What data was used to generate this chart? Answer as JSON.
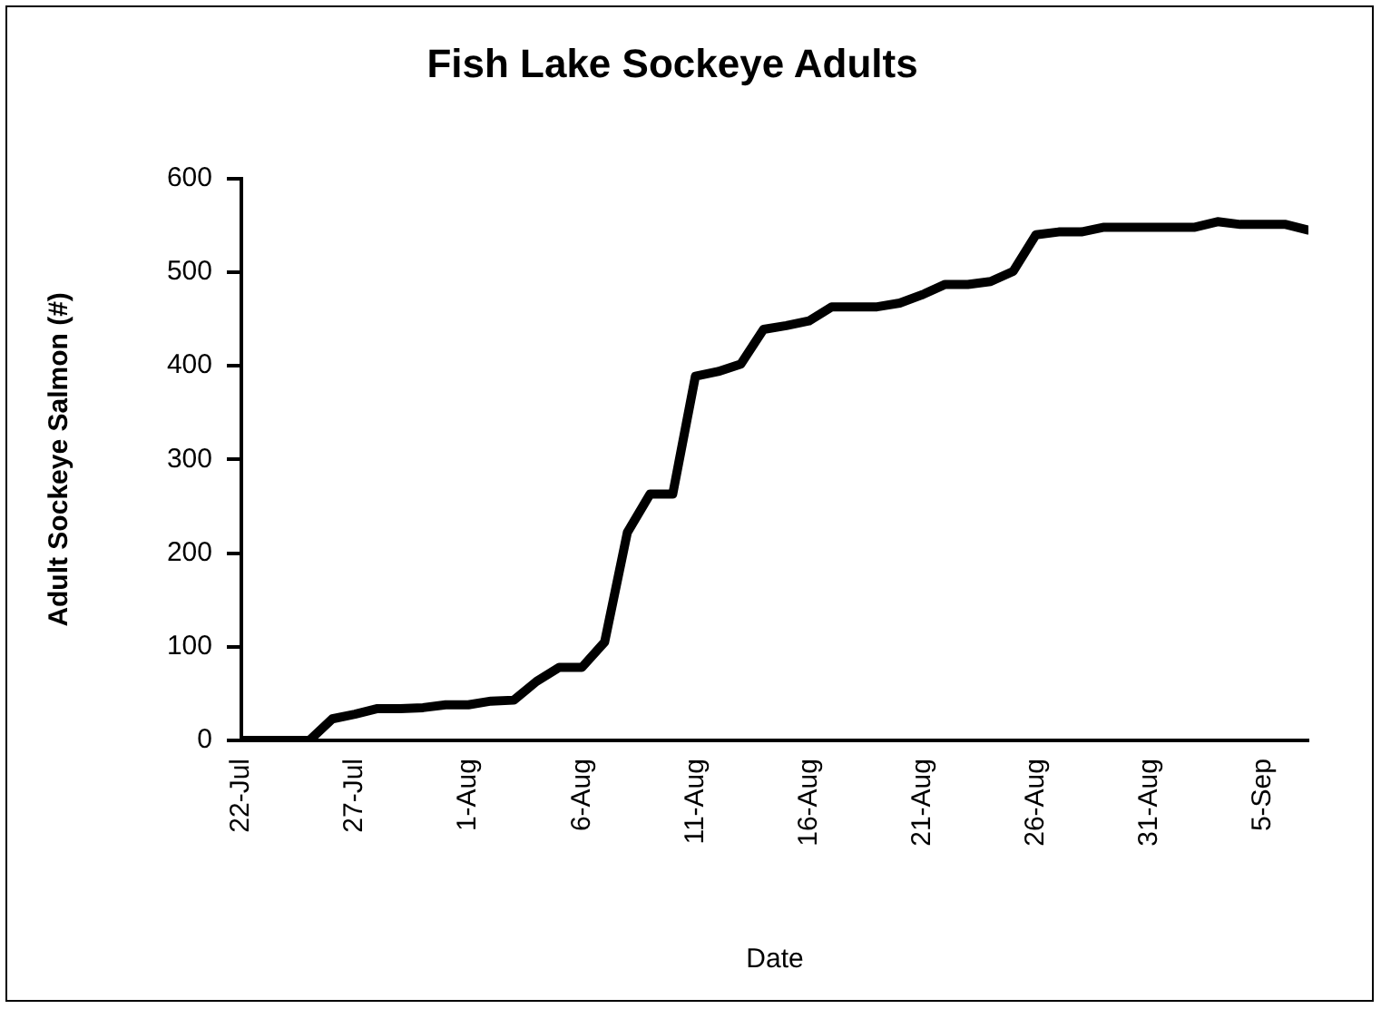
{
  "chart_data": {
    "type": "line",
    "title": "Fish Lake Sockeye Adults",
    "xlabel": "Date",
    "ylabel": "Adult Sockeye Salmon (#)",
    "x": [
      "--07-22",
      "--07-23",
      "--07-24",
      "--07-25",
      "--07-26",
      "--07-27",
      "--07-28",
      "--07-29",
      "--07-30",
      "--07-31",
      "--08-01",
      "--08-02",
      "--08-03",
      "--08-04",
      "--08-05",
      "--08-06",
      "--08-07",
      "--08-08",
      "--08-09",
      "--08-10",
      "--08-11",
      "--08-12",
      "--08-13",
      "--08-14",
      "--08-15",
      "--08-16",
      "--08-17",
      "--08-18",
      "--08-19",
      "--08-20",
      "--08-21",
      "--08-22",
      "--08-23",
      "--08-24",
      "--08-25",
      "--08-26",
      "--08-27",
      "--08-28",
      "--08-29",
      "--08-30",
      "--08-31",
      "--09-01",
      "--09-02",
      "--09-03",
      "--09-04",
      "--09-05",
      "--09-06",
      "--09-07"
    ],
    "series": [
      {
        "color": "#000000",
        "values": [
          0,
          0,
          0,
          0,
          23,
          28,
          34,
          34,
          35,
          38,
          38,
          42,
          43,
          63,
          78,
          78,
          105,
          222,
          263,
          263,
          389,
          394,
          402,
          439,
          443,
          448,
          463,
          463,
          463,
          467,
          476,
          487,
          487,
          490,
          501,
          540,
          543,
          543,
          548,
          548,
          548,
          548,
          548,
          554,
          551,
          551,
          551,
          545
        ]
      }
    ],
    "xlim": [
      "--07-22",
      "--09-07"
    ],
    "xticks": [
      {
        "value": "--07-22",
        "label": "22-Jul"
      },
      {
        "value": "--07-27",
        "label": "27-Jul"
      },
      {
        "value": "--08-01",
        "label": "1-Aug"
      },
      {
        "value": "--08-06",
        "label": "6-Aug"
      },
      {
        "value": "--08-11",
        "label": "11-Aug"
      },
      {
        "value": "--08-16",
        "label": "16-Aug"
      },
      {
        "value": "--08-21",
        "label": "21-Aug"
      },
      {
        "value": "--08-26",
        "label": "26-Aug"
      },
      {
        "value": "--08-31",
        "label": "31-Aug"
      },
      {
        "value": "--09-05",
        "label": "5-Sep"
      }
    ],
    "ylim": [
      0,
      600
    ],
    "yticks": [
      0,
      100,
      200,
      300,
      400,
      500,
      600
    ],
    "marker": "none",
    "line_style": "solid"
  }
}
